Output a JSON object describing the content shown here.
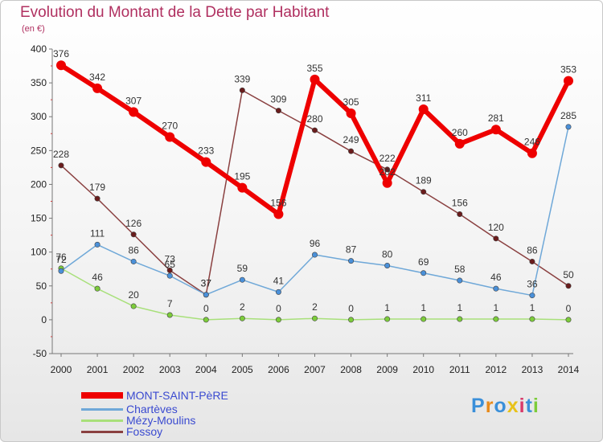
{
  "title": "Evolution du Montant de la Dette par Habitant",
  "unit": "(en €)",
  "logo_text": "Proxiti",
  "chart_data": {
    "type": "line",
    "title": "Evolution du Montant de la Dette par Habitant",
    "subtitle": "(en €)",
    "xlabel": "",
    "ylabel": "",
    "x": [
      2000,
      2001,
      2002,
      2003,
      2004,
      2005,
      2006,
      2007,
      2008,
      2009,
      2010,
      2011,
      2012,
      2013,
      2014
    ],
    "ylim": [
      -50,
      400
    ],
    "yticks": [
      -50,
      0,
      50,
      100,
      150,
      200,
      250,
      300,
      350,
      400
    ],
    "grid": false,
    "legend_position": "bottom-left",
    "series": [
      {
        "name": "MONT-SAINT-PèRE",
        "color": "#ee0000",
        "point_color": "#ee0000",
        "values": [
          376,
          342,
          307,
          270,
          233,
          195,
          156,
          355,
          305,
          202,
          311,
          260,
          281,
          246,
          353
        ]
      },
      {
        "name": "Chartèves",
        "color": "#6fa8d8",
        "point_color": "#4a90d9",
        "values": [
          72,
          111,
          86,
          65,
          37,
          59,
          41,
          96,
          87,
          80,
          69,
          58,
          46,
          36,
          285
        ]
      },
      {
        "name": "Mézy-Moulins",
        "color": "#a8e07a",
        "point_color": "#7ccc3a",
        "values": [
          76,
          46,
          20,
          7,
          0,
          2,
          0,
          2,
          0,
          1,
          1,
          1,
          1,
          1,
          0
        ]
      },
      {
        "name": "Fossoy",
        "color": "#8a4040",
        "point_color": "#6a1c1c",
        "values": [
          228,
          179,
          126,
          73,
          37,
          339,
          309,
          280,
          249,
          222,
          189,
          156,
          120,
          86,
          50
        ]
      }
    ],
    "data_labels": [
      [
        "376",
        "342",
        "307",
        "270",
        "233",
        "195",
        "156",
        "355",
        "305",
        "202",
        "311",
        "260",
        "281",
        "246",
        "353"
      ],
      [
        "72",
        "111",
        "86",
        "65",
        "37",
        "59",
        "41",
        "96",
        "87",
        "80",
        "69",
        "58",
        "46",
        "36",
        "285"
      ],
      [
        "76",
        "46",
        "20",
        "7",
        "0",
        "2",
        "0",
        "2",
        "0",
        "1",
        "1",
        "1",
        "1",
        "1",
        "0"
      ],
      [
        "228",
        "179",
        "126",
        "73",
        "37",
        "339",
        "309",
        "280",
        "249",
        "222",
        "189",
        "156",
        "120",
        "86",
        "50"
      ]
    ]
  }
}
